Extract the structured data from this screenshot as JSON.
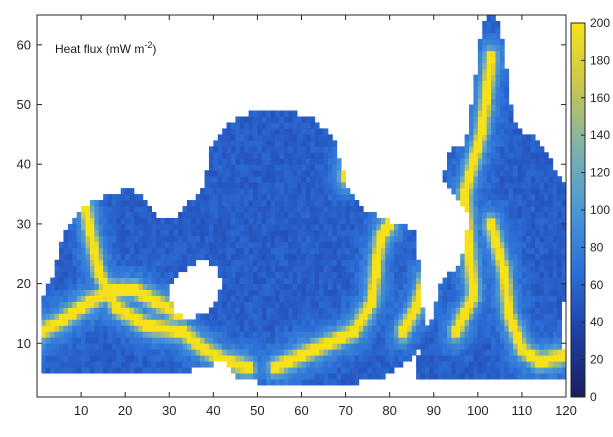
{
  "chart_data": {
    "type": "heatmap",
    "title": "",
    "xlabel": "",
    "ylabel": "",
    "annotation": {
      "prefix": "Heat flux (mW m",
      "exponent": "-2",
      "suffix": ")"
    },
    "xlim": [
      0,
      120
    ],
    "ylim": [
      1,
      65
    ],
    "xticks": [
      10,
      20,
      30,
      40,
      50,
      60,
      70,
      80,
      90,
      100,
      110,
      120
    ],
    "yticks": [
      10,
      20,
      30,
      40,
      50,
      60
    ],
    "colorbar": {
      "min": 0,
      "max": 200,
      "ticks": [
        0,
        20,
        40,
        60,
        80,
        100,
        120,
        140,
        160,
        180,
        200
      ],
      "colors": [
        "#1a1f5c",
        "#1f3ea5",
        "#2c6fd8",
        "#4a98d4",
        "#7fb2ad",
        "#c9c64c",
        "#f7e21a"
      ]
    },
    "field": {
      "background_value": 55,
      "basins": [
        {
          "name": "west",
          "polygon": [
            [
              1,
              5
            ],
            [
              1,
              17
            ],
            [
              4,
              22
            ],
            [
              6,
              29
            ],
            [
              11,
              33
            ],
            [
              17,
              35
            ],
            [
              21,
              36
            ],
            [
              25,
              34
            ],
            [
              27,
              31
            ],
            [
              31,
              31
            ],
            [
              34,
              31
            ],
            [
              36,
              29
            ],
            [
              39,
              28
            ],
            [
              42,
              25
            ],
            [
              45,
              23
            ],
            [
              45,
              18
            ],
            [
              44,
              13
            ],
            [
              43,
              7
            ],
            [
              33,
              5
            ],
            [
              20,
              5
            ]
          ]
        },
        {
          "name": "central",
          "polygon": [
            [
              31,
              31
            ],
            [
              35,
              34
            ],
            [
              38,
              36
            ],
            [
              39,
              42
            ],
            [
              41,
              45
            ],
            [
              44,
              47
            ],
            [
              49,
              49
            ],
            [
              57,
              49
            ],
            [
              62,
              48
            ],
            [
              67,
              45
            ],
            [
              69,
              40
            ],
            [
              71,
              35
            ],
            [
              75,
              32
            ],
            [
              82,
              30
            ],
            [
              86,
              29
            ],
            [
              88,
              25
            ],
            [
              89,
              18
            ],
            [
              88,
              12
            ],
            [
              86,
              8
            ],
            [
              78,
              4
            ],
            [
              68,
              3
            ],
            [
              54,
              3
            ],
            [
              46,
              4
            ],
            [
              43,
              7
            ],
            [
              44,
              13
            ],
            [
              45,
              18
            ],
            [
              45,
              23
            ],
            [
              42,
              25
            ]
          ]
        },
        {
          "name": "east",
          "polygon": [
            [
              86,
              6
            ],
            [
              88,
              12
            ],
            [
              90,
              18
            ],
            [
              92,
              21
            ],
            [
              95,
              22
            ],
            [
              97,
              26
            ],
            [
              98,
              32
            ],
            [
              94,
              36
            ],
            [
              92,
              38
            ],
            [
              94,
              43
            ],
            [
              97,
              43
            ],
            [
              99,
              52
            ],
            [
              100,
              58
            ],
            [
              101,
              64
            ],
            [
              104,
              65
            ],
            [
              106,
              60
            ],
            [
              107,
              52
            ],
            [
              109,
              46
            ],
            [
              114,
              44
            ],
            [
              117,
              40
            ],
            [
              120,
              36
            ],
            [
              120,
              20
            ],
            [
              119,
              14
            ],
            [
              120,
              5
            ]
          ]
        },
        {
          "name": "east-strip",
          "polygon": [
            [
              86,
              4
            ],
            [
              120,
              4
            ],
            [
              120,
              7
            ],
            [
              86,
              7
            ]
          ]
        }
      ],
      "holes": [
        {
          "name": "white-island",
          "polygon": [
            [
              30,
              19
            ],
            [
              33,
              22
            ],
            [
              37,
              24
            ],
            [
              41,
              23
            ],
            [
              42,
              20
            ],
            [
              40,
              16
            ],
            [
              35,
              14
            ],
            [
              31,
              15
            ]
          ]
        },
        {
          "name": "white-gap",
          "polygon": [
            [
              86,
              28
            ],
            [
              89,
              31
            ],
            [
              93,
              32
            ],
            [
              95,
              30
            ],
            [
              93,
              24
            ],
            [
              91,
              19
            ],
            [
              90,
              14
            ],
            [
              88,
              12
            ]
          ]
        }
      ],
      "ridges": [
        {
          "name": "west-ridge",
          "points": [
            [
              11,
              33
            ],
            [
              12,
              29
            ],
            [
              14,
              22
            ],
            [
              18,
              16
            ],
            [
              25,
              13
            ],
            [
              33,
              12
            ],
            [
              38,
              9
            ],
            [
              43,
              7
            ],
            [
              48,
              6
            ]
          ]
        },
        {
          "name": "west-branch",
          "points": [
            [
              1,
              12
            ],
            [
              6,
              14
            ],
            [
              12,
              17
            ],
            [
              17,
              19
            ],
            [
              22,
              19
            ],
            [
              27,
              17
            ],
            [
              32,
              15
            ]
          ]
        },
        {
          "name": "central-ridge",
          "points": [
            [
              54,
              6
            ],
            [
              60,
              8
            ],
            [
              66,
              10
            ],
            [
              72,
              12
            ],
            [
              76,
              17
            ],
            [
              77,
              23
            ],
            [
              78,
              28
            ],
            [
              80,
              30
            ]
          ]
        },
        {
          "name": "central-branch",
          "points": [
            [
              83,
              12
            ],
            [
              86,
              16
            ],
            [
              88,
              21
            ]
          ]
        },
        {
          "name": "east-ridge",
          "points": [
            [
              95,
              12
            ],
            [
              99,
              18
            ],
            [
              98,
              26
            ],
            [
              97,
              35
            ],
            [
              101,
              46
            ],
            [
              103,
              58
            ]
          ]
        },
        {
          "name": "east-branch",
          "points": [
            [
              103,
              30
            ],
            [
              106,
              22
            ],
            [
              107,
              15
            ],
            [
              110,
              9
            ],
            [
              114,
              7
            ],
            [
              120,
              8
            ]
          ]
        },
        {
          "name": "northeast-spot",
          "points": [
            [
              70,
              38
            ],
            [
              71,
              41
            ],
            [
              72,
              43
            ]
          ]
        }
      ]
    }
  }
}
